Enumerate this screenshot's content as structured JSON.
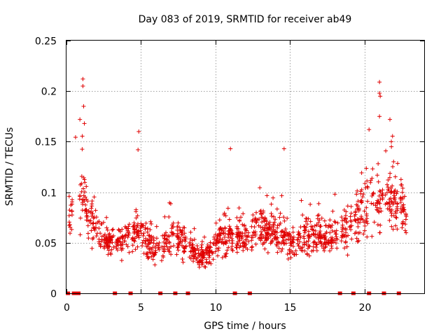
{
  "chart_data": {
    "type": "scatter",
    "title": "Day 083 of 2019, SRMTID for receiver ab49",
    "xlabel": "GPS time / hours",
    "ylabel": "SRMTID / TECUs",
    "xlim": [
      0,
      24
    ],
    "ylim": [
      0,
      0.25
    ],
    "xticks": [
      0,
      5,
      10,
      15,
      20
    ],
    "xtick_labels": [
      "0",
      "5",
      "10",
      "15",
      "20"
    ],
    "yticks": [
      0,
      0.05,
      0.1,
      0.15,
      0.2,
      0.25
    ],
    "ytick_labels": [
      "0",
      "0.05",
      "0.1",
      "0.15",
      "0.2",
      "0.25"
    ],
    "grid": true,
    "marker": "+",
    "color": "#e00000",
    "envelope_profile": {
      "description": "approximate typical SRMTID level vs time (hours), read off the plot",
      "x": [
        0,
        0.5,
        1,
        1.5,
        2,
        2.5,
        3,
        3.5,
        4,
        4.5,
        5,
        5.5,
        6,
        6.5,
        7,
        7.5,
        8,
        8.5,
        9,
        9.5,
        10,
        10.5,
        11,
        11.5,
        12,
        12.5,
        13,
        13.5,
        14,
        14.5,
        15,
        15.5,
        16,
        16.5,
        17,
        17.5,
        18,
        18.5,
        19,
        19.5,
        20,
        20.5,
        21,
        21.5,
        22,
        22.5,
        22.8
      ],
      "y": [
        0.075,
        0.085,
        0.1,
        0.075,
        0.065,
        0.055,
        0.05,
        0.048,
        0.055,
        0.06,
        0.065,
        0.052,
        0.045,
        0.05,
        0.052,
        0.055,
        0.048,
        0.042,
        0.035,
        0.04,
        0.05,
        0.055,
        0.06,
        0.058,
        0.055,
        0.06,
        0.065,
        0.063,
        0.06,
        0.062,
        0.05,
        0.048,
        0.055,
        0.058,
        0.06,
        0.055,
        0.06,
        0.063,
        0.07,
        0.075,
        0.085,
        0.09,
        0.08,
        0.095,
        0.09,
        0.085,
        0.07
      ]
    },
    "peaks": [
      {
        "x": 1.1,
        "y": 0.212
      },
      {
        "x": 1.1,
        "y": 0.205
      },
      {
        "x": 1.15,
        "y": 0.185
      },
      {
        "x": 0.9,
        "y": 0.172
      },
      {
        "x": 1.2,
        "y": 0.168
      },
      {
        "x": 4.85,
        "y": 0.16
      },
      {
        "x": 4.8,
        "y": 0.142
      },
      {
        "x": 11.0,
        "y": 0.143
      },
      {
        "x": 14.6,
        "y": 0.143
      },
      {
        "x": 20.3,
        "y": 0.162
      },
      {
        "x": 21.0,
        "y": 0.209
      },
      {
        "x": 21.0,
        "y": 0.198
      },
      {
        "x": 21.05,
        "y": 0.195
      },
      {
        "x": 21.0,
        "y": 0.175
      },
      {
        "x": 21.7,
        "y": 0.172
      },
      {
        "x": 21.8,
        "y": 0.145
      }
    ],
    "data_gaps": {
      "description": "hours with missing data, drawn as points at y = 0",
      "x": [
        0.1,
        0.5,
        0.7,
        0.8,
        3.25,
        4.3,
        6.3,
        7.3,
        8.15,
        11.3,
        12.3,
        18.35,
        19.25,
        20.3,
        21.3,
        22.3
      ]
    }
  }
}
